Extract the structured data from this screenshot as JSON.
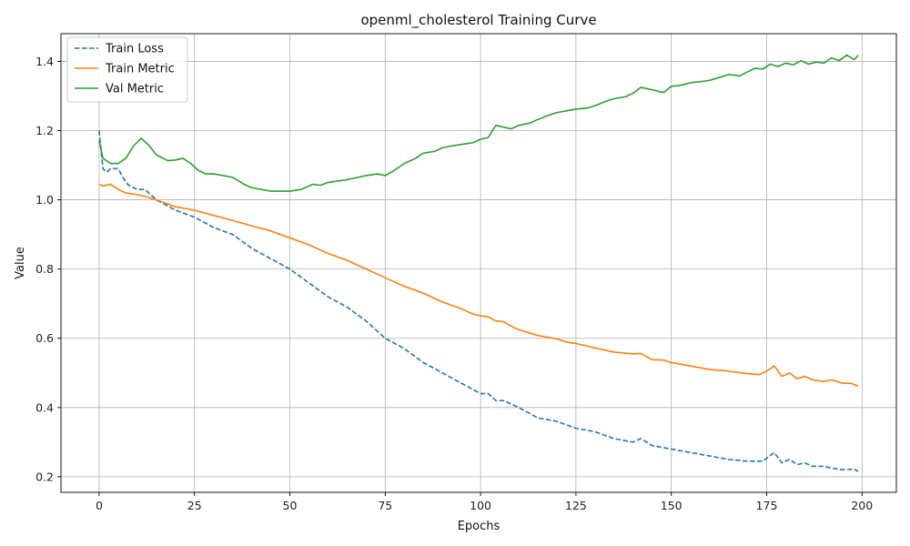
{
  "chart_data": {
    "type": "line",
    "title": "openml_cholesterol Training Curve",
    "xlabel": "Epochs",
    "ylabel": "Value",
    "xlim": [
      -10,
      209
    ],
    "ylim": [
      0.155,
      1.48
    ],
    "xticks": [
      0,
      25,
      50,
      75,
      100,
      125,
      150,
      175,
      200
    ],
    "yticks": [
      0.2,
      0.4,
      0.6,
      0.8,
      1.0,
      1.2,
      1.4
    ],
    "ytick_labels": [
      "0.2",
      "0.4",
      "0.6",
      "0.8",
      "1.0",
      "1.2",
      "1.4"
    ],
    "grid": true,
    "legend_position": "upper-left",
    "series": [
      {
        "name": "Train Loss",
        "color": "#1f77b4",
        "dash": "dashed",
        "points": [
          [
            0,
            1.2
          ],
          [
            1,
            1.09
          ],
          [
            2,
            1.08
          ],
          [
            3,
            1.09
          ],
          [
            5,
            1.09
          ],
          [
            7,
            1.05
          ],
          [
            8,
            1.04
          ],
          [
            10,
            1.03
          ],
          [
            12,
            1.03
          ],
          [
            15,
            1.0
          ],
          [
            20,
            0.97
          ],
          [
            25,
            0.95
          ],
          [
            30,
            0.92
          ],
          [
            35,
            0.9
          ],
          [
            40,
            0.86
          ],
          [
            45,
            0.83
          ],
          [
            50,
            0.8
          ],
          [
            55,
            0.76
          ],
          [
            60,
            0.72
          ],
          [
            65,
            0.69
          ],
          [
            70,
            0.65
          ],
          [
            75,
            0.6
          ],
          [
            80,
            0.57
          ],
          [
            85,
            0.53
          ],
          [
            90,
            0.5
          ],
          [
            95,
            0.47
          ],
          [
            100,
            0.44
          ],
          [
            102,
            0.44
          ],
          [
            104,
            0.42
          ],
          [
            106,
            0.42
          ],
          [
            108,
            0.41
          ],
          [
            110,
            0.4
          ],
          [
            115,
            0.37
          ],
          [
            120,
            0.36
          ],
          [
            125,
            0.34
          ],
          [
            130,
            0.33
          ],
          [
            135,
            0.31
          ],
          [
            140,
            0.3
          ],
          [
            142,
            0.31
          ],
          [
            145,
            0.29
          ],
          [
            150,
            0.28
          ],
          [
            155,
            0.27
          ],
          [
            160,
            0.26
          ],
          [
            165,
            0.25
          ],
          [
            170,
            0.245
          ],
          [
            174,
            0.245
          ],
          [
            177,
            0.27
          ],
          [
            179,
            0.24
          ],
          [
            181,
            0.25
          ],
          [
            183,
            0.235
          ],
          [
            185,
            0.24
          ],
          [
            187,
            0.23
          ],
          [
            190,
            0.23
          ],
          [
            192,
            0.225
          ],
          [
            195,
            0.22
          ],
          [
            198,
            0.222
          ],
          [
            199,
            0.215
          ]
        ]
      },
      {
        "name": "Train Metric",
        "color": "#ff7f0e",
        "dash": "solid",
        "points": [
          [
            0,
            1.045
          ],
          [
            1,
            1.04
          ],
          [
            3,
            1.045
          ],
          [
            5,
            1.03
          ],
          [
            7,
            1.02
          ],
          [
            10,
            1.015
          ],
          [
            12,
            1.01
          ],
          [
            15,
            1.0
          ],
          [
            20,
            0.98
          ],
          [
            25,
            0.97
          ],
          [
            30,
            0.955
          ],
          [
            35,
            0.94
          ],
          [
            40,
            0.925
          ],
          [
            45,
            0.91
          ],
          [
            50,
            0.89
          ],
          [
            55,
            0.87
          ],
          [
            60,
            0.845
          ],
          [
            65,
            0.825
          ],
          [
            70,
            0.8
          ],
          [
            75,
            0.775
          ],
          [
            80,
            0.75
          ],
          [
            85,
            0.73
          ],
          [
            88,
            0.715
          ],
          [
            90,
            0.705
          ],
          [
            95,
            0.685
          ],
          [
            98,
            0.67
          ],
          [
            100,
            0.665
          ],
          [
            102,
            0.662
          ],
          [
            104,
            0.65
          ],
          [
            106,
            0.648
          ],
          [
            108,
            0.635
          ],
          [
            110,
            0.625
          ],
          [
            115,
            0.608
          ],
          [
            120,
            0.598
          ],
          [
            123,
            0.588
          ],
          [
            125,
            0.585
          ],
          [
            130,
            0.572
          ],
          [
            135,
            0.56
          ],
          [
            140,
            0.555
          ],
          [
            142,
            0.556
          ],
          [
            145,
            0.538
          ],
          [
            148,
            0.537
          ],
          [
            150,
            0.53
          ],
          [
            155,
            0.52
          ],
          [
            160,
            0.51
          ],
          [
            165,
            0.505
          ],
          [
            170,
            0.498
          ],
          [
            173,
            0.495
          ],
          [
            175,
            0.505
          ],
          [
            177,
            0.52
          ],
          [
            179,
            0.49
          ],
          [
            181,
            0.5
          ],
          [
            183,
            0.483
          ],
          [
            185,
            0.49
          ],
          [
            187,
            0.48
          ],
          [
            190,
            0.475
          ],
          [
            192,
            0.48
          ],
          [
            195,
            0.47
          ],
          [
            197,
            0.47
          ],
          [
            199,
            0.462
          ]
        ]
      },
      {
        "name": "Val Metric",
        "color": "#2ca02c",
        "dash": "solid",
        "points": [
          [
            0,
            1.17
          ],
          [
            1,
            1.12
          ],
          [
            3,
            1.105
          ],
          [
            5,
            1.105
          ],
          [
            7,
            1.12
          ],
          [
            9,
            1.155
          ],
          [
            11,
            1.178
          ],
          [
            13,
            1.158
          ],
          [
            15,
            1.13
          ],
          [
            18,
            1.113
          ],
          [
            20,
            1.115
          ],
          [
            22,
            1.12
          ],
          [
            24,
            1.105
          ],
          [
            26,
            1.085
          ],
          [
            28,
            1.075
          ],
          [
            30,
            1.075
          ],
          [
            35,
            1.065
          ],
          [
            38,
            1.045
          ],
          [
            40,
            1.035
          ],
          [
            45,
            1.025
          ],
          [
            50,
            1.025
          ],
          [
            53,
            1.03
          ],
          [
            56,
            1.045
          ],
          [
            58,
            1.042
          ],
          [
            60,
            1.05
          ],
          [
            65,
            1.058
          ],
          [
            70,
            1.07
          ],
          [
            73,
            1.075
          ],
          [
            75,
            1.07
          ],
          [
            77,
            1.082
          ],
          [
            80,
            1.105
          ],
          [
            83,
            1.12
          ],
          [
            85,
            1.135
          ],
          [
            88,
            1.14
          ],
          [
            90,
            1.15
          ],
          [
            92,
            1.155
          ],
          [
            95,
            1.16
          ],
          [
            98,
            1.165
          ],
          [
            100,
            1.175
          ],
          [
            102,
            1.18
          ],
          [
            104,
            1.215
          ],
          [
            106,
            1.21
          ],
          [
            108,
            1.205
          ],
          [
            110,
            1.215
          ],
          [
            113,
            1.222
          ],
          [
            115,
            1.232
          ],
          [
            118,
            1.245
          ],
          [
            120,
            1.252
          ],
          [
            123,
            1.258
          ],
          [
            125,
            1.262
          ],
          [
            128,
            1.265
          ],
          [
            130,
            1.272
          ],
          [
            133,
            1.285
          ],
          [
            135,
            1.292
          ],
          [
            138,
            1.298
          ],
          [
            140,
            1.308
          ],
          [
            142,
            1.325
          ],
          [
            145,
            1.318
          ],
          [
            148,
            1.31
          ],
          [
            150,
            1.328
          ],
          [
            152,
            1.33
          ],
          [
            155,
            1.338
          ],
          [
            158,
            1.342
          ],
          [
            160,
            1.345
          ],
          [
            163,
            1.355
          ],
          [
            165,
            1.362
          ],
          [
            168,
            1.358
          ],
          [
            170,
            1.37
          ],
          [
            172,
            1.38
          ],
          [
            174,
            1.378
          ],
          [
            176,
            1.392
          ],
          [
            178,
            1.385
          ],
          [
            180,
            1.395
          ],
          [
            182,
            1.39
          ],
          [
            184,
            1.402
          ],
          [
            186,
            1.392
          ],
          [
            188,
            1.398
          ],
          [
            190,
            1.395
          ],
          [
            192,
            1.41
          ],
          [
            194,
            1.402
          ],
          [
            196,
            1.418
          ],
          [
            198,
            1.405
          ],
          [
            199,
            1.418
          ]
        ]
      }
    ]
  }
}
